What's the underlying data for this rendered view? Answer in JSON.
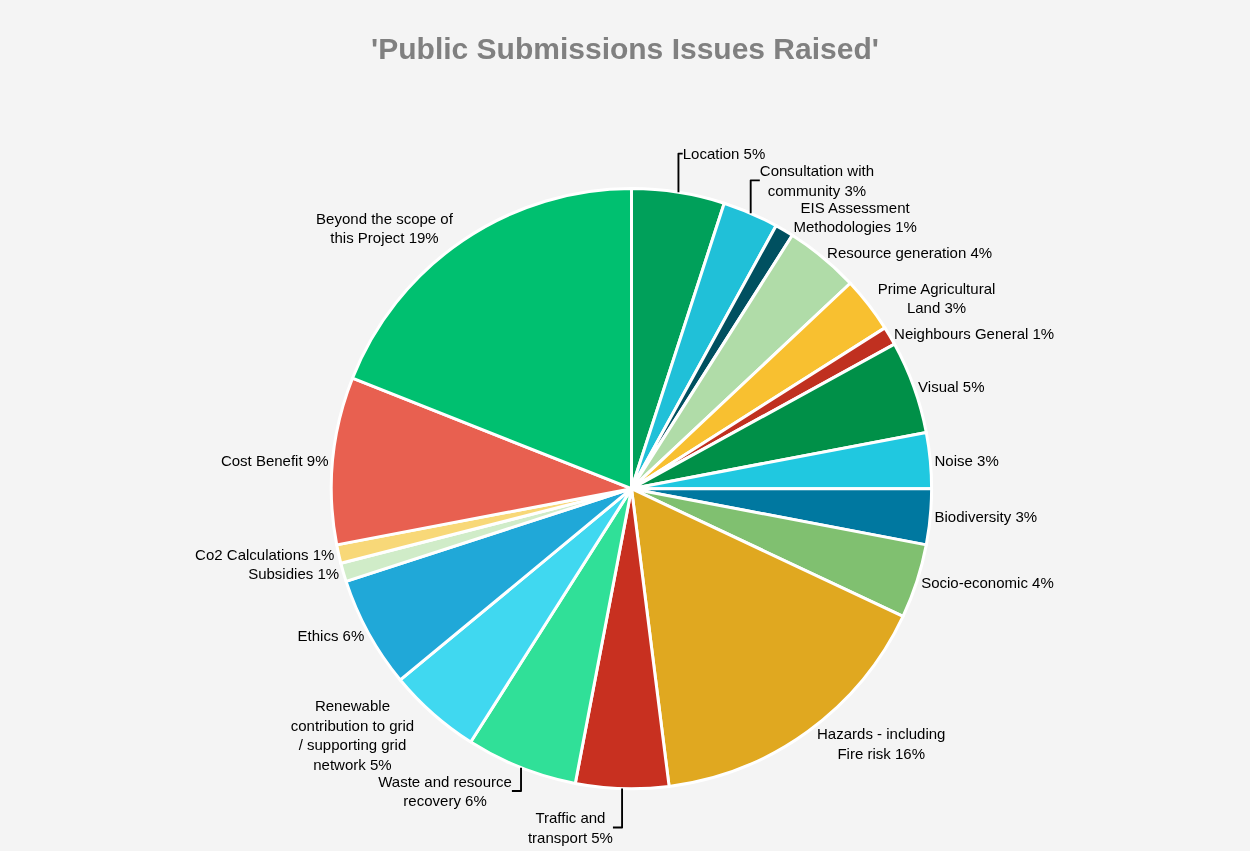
{
  "chart_data": {
    "type": "pie",
    "title": "'Public Submissions Issues Raised'",
    "categories": [
      "Location",
      "Consultation with community",
      "EIS Assessment Methodologies",
      "Resource generation",
      "Prime Agricultural Land",
      "Neighbours General",
      "Visual",
      "Noise",
      "Biodiversity",
      "Socio-economic",
      "Hazards - including Fire risk",
      "Traffic and transport",
      "Waste and resource recovery",
      "Renewable contribution to grid / supporting grid network",
      "Ethics",
      "Subsidies",
      "Co2 Calculations",
      "Cost Benefit",
      "Beyond the scope of this Project"
    ],
    "values": [
      5,
      3,
      1,
      4,
      3,
      1,
      5,
      3,
      3,
      4,
      16,
      5,
      6,
      5,
      6,
      1,
      1,
      9,
      19
    ],
    "value_labels": [
      "5%",
      "3%",
      "1%",
      "4%",
      "3%",
      "1%",
      "5%",
      "3%",
      "3%",
      "4%",
      "16%",
      "5%",
      "6%",
      "5%",
      "6%",
      "1%",
      "1%",
      "9%",
      "19%"
    ],
    "colors": [
      "#00a05a",
      "#20c0d8",
      "#005060",
      "#b0dca8",
      "#f8c030",
      "#c03020",
      "#009048",
      "#20c8e0",
      "#0078a0",
      "#80c070",
      "#e0a820",
      "#c83020",
      "#30e098",
      "#40d8f0",
      "#20a8d8",
      "#d0ecc8",
      "#f8d878",
      "#e86050",
      "#00c070"
    ],
    "legend": false
  }
}
